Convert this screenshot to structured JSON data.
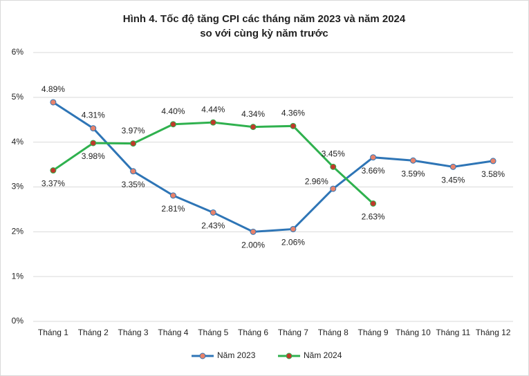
{
  "chart_data": {
    "type": "line",
    "title": [
      "Hình 4. Tốc độ tăng CPI các tháng năm 2023 và năm 2024",
      "so với cùng kỳ năm trước"
    ],
    "categories": [
      "Tháng 1",
      "Tháng 2",
      "Tháng 3",
      "Tháng 4",
      "Tháng 5",
      "Tháng 6",
      "Tháng 7",
      "Tháng 8",
      "Tháng 9",
      "Tháng 10",
      "Tháng 11",
      "Tháng 12"
    ],
    "series": [
      {
        "name": "Năm 2023",
        "color": "#2e75b6",
        "marker_color": "#e8826a",
        "values": [
          4.89,
          4.31,
          3.35,
          2.81,
          2.43,
          2.0,
          2.06,
          2.96,
          3.66,
          3.59,
          3.45,
          3.58
        ],
        "value_labels": [
          "4.89%",
          "4.31%",
          "3.35%",
          "2.81%",
          "2.43%",
          "2.00%",
          "2.06%",
          "2.96%",
          "3.66%",
          "3.59%",
          "3.45%",
          "3.58%"
        ]
      },
      {
        "name": "Năm 2024",
        "color": "#2fb14e",
        "marker_color": "#c0392b",
        "values": [
          3.37,
          3.98,
          3.97,
          4.4,
          4.44,
          4.34,
          4.36,
          3.45,
          2.63,
          null,
          null,
          null
        ],
        "value_labels": [
          "3.37%",
          "3.98%",
          "3.97%",
          "4.40%",
          "4.44%",
          "4.34%",
          "4.36%",
          "3.45%",
          "2.63%",
          null,
          null,
          null
        ]
      }
    ],
    "ylim": [
      0,
      6
    ],
    "yticks": [
      {
        "value": 0,
        "label": "0%"
      },
      {
        "value": 1,
        "label": "1%"
      },
      {
        "value": 2,
        "label": "2%"
      },
      {
        "value": 3,
        "label": "3%"
      },
      {
        "value": 4,
        "label": "4%"
      },
      {
        "value": 5,
        "label": "5%"
      },
      {
        "value": 6,
        "label": "6%"
      }
    ],
    "grid": true,
    "legend": "bottom"
  }
}
